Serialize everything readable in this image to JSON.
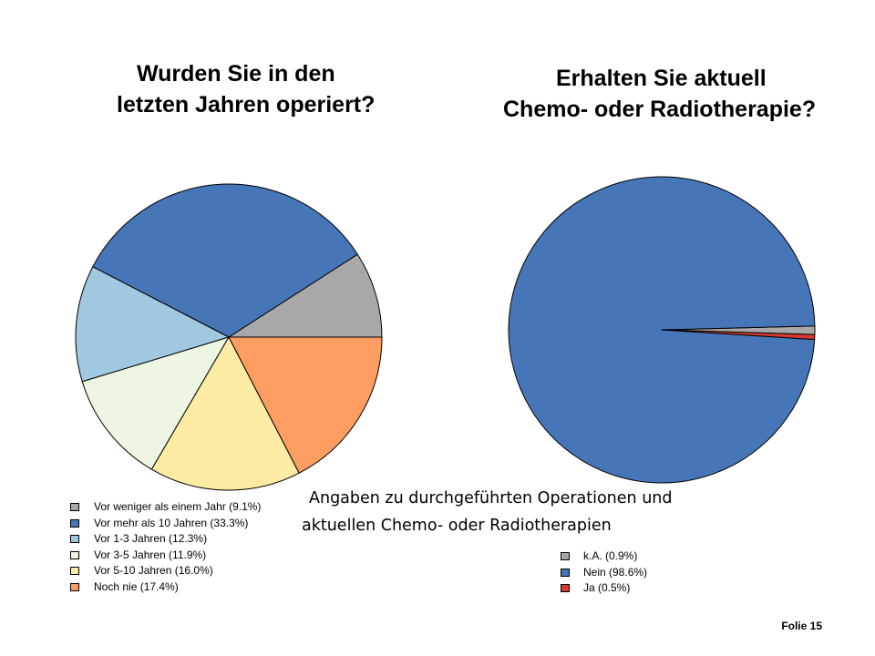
{
  "chart_data": [
    {
      "type": "pie",
      "title": [
        "Wurden Sie in den",
        "letzten Jahren operiert?"
      ],
      "series": [
        {
          "name": "Vor weniger als einem Jahr (9.1%)",
          "value": 9.1,
          "color": "#a8a8a8"
        },
        {
          "name": "Vor mehr als 10 Jahren (33.3%)",
          "value": 33.3,
          "color": "#4676b8"
        },
        {
          "name": "Vor 1-3 Jahren (12.3%)",
          "value": 12.3,
          "color": "#a0c8e0"
        },
        {
          "name": "Vor 3-5 Jahren (11.9%)",
          "value": 11.9,
          "color": "#edf6e2"
        },
        {
          "name": "Vor 5-10 Jahren (16.0%)",
          "value": 16.0,
          "color": "#fdeba4"
        },
        {
          "name": "Noch nie (17.4%)",
          "value": 17.4,
          "color": "#fd9d62"
        }
      ],
      "legend_position": "bottom-left"
    },
    {
      "type": "pie",
      "title": [
        "Erhalten Sie aktuell",
        "Chemo- oder Radiotherapie?"
      ],
      "series": [
        {
          "name": "k.A. (0.9%)",
          "value": 0.9,
          "color": "#a8a8a8"
        },
        {
          "name": "Nein (98.6%)",
          "value": 98.6,
          "color": "#4676b8"
        },
        {
          "name": "Ja (0.5%)",
          "value": 0.5,
          "color": "#d83a30"
        }
      ],
      "legend_position": "bottom-right"
    }
  ],
  "caption": [
    "Angaben zu durchgeführten Operationen und",
    "aktuellen Chemo- oder Radiotherapien"
  ],
  "slide_number": "Folie 15"
}
